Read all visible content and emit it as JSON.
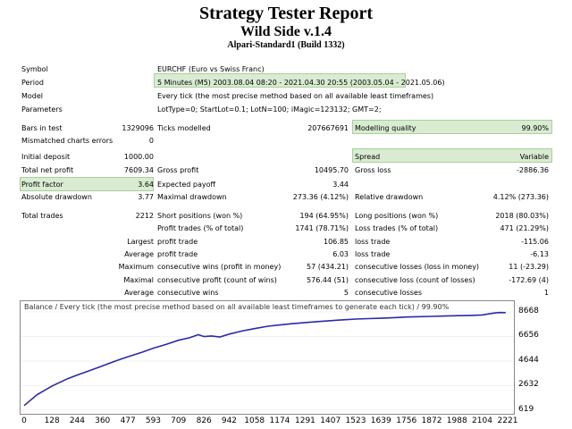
{
  "header": {
    "title": "Strategy Tester Report",
    "subtitle": "Wild Side v.1.4",
    "server": "Alpari-Standard1 (Build 1332)"
  },
  "info": {
    "symbol_label": "Symbol",
    "symbol_value": "EURCHF (Euro vs Swiss Franc)",
    "period_label": "Period",
    "period_value": "5 Minutes (M5) 2003.08.04 08:20 - 2021.04.30 20:55 (2003.05.04 - 2021.05.06)",
    "model_label": "Model",
    "model_value": "Every tick (the most precise method based on all available least timeframes)",
    "parameters_label": "Parameters",
    "parameters_value": "LotType=0; StartLot=0.1; LotN=100; iMagic=123132; GMT=2;"
  },
  "stats": {
    "bars_label": "Bars in test",
    "bars_value": "1329096",
    "ticks_label": "Ticks modelled",
    "ticks_value": "207667691",
    "quality_label": "Modelling quality",
    "quality_value": "99.90%",
    "mismatch_label": "Mismatched charts errors",
    "mismatch_value": "0",
    "deposit_label": "Initial deposit",
    "deposit_value": "1000.00",
    "spread_label": "Spread",
    "spread_value": "Variable",
    "net_label": "Total net profit",
    "net_value": "7609.34",
    "gross_profit_label": "Gross profit",
    "gross_profit_value": "10495.70",
    "gross_loss_label": "Gross loss",
    "gross_loss_value": "-2886.36",
    "pf_label": "Profit factor",
    "pf_value": "3.64",
    "payoff_label": "Expected payoff",
    "payoff_value": "3.44",
    "abs_dd_label": "Absolute drawdown",
    "abs_dd_value": "3.77",
    "max_dd_label": "Maximal drawdown",
    "max_dd_value": "273.36 (4.12%)",
    "rel_dd_label": "Relative drawdown",
    "rel_dd_value": "4.12% (273.36)",
    "trades_label": "Total trades",
    "trades_value": "2212",
    "short_label": "Short positions (won %)",
    "short_value": "194 (64.95%)",
    "long_label": "Long positions (won %)",
    "long_value": "2018 (80.03%)",
    "pt_label": "Profit trades (% of total)",
    "pt_value": "1741 (78.71%)",
    "lt_label": "Loss trades (% of total)",
    "lt_value": "471 (21.29%)",
    "largest": "Largest",
    "lpt_label": "profit trade",
    "lpt_value": "106.85",
    "llt_label": "loss trade",
    "llt_value": "-115.06",
    "average": "Average",
    "apt_label": "profit trade",
    "apt_value": "6.03",
    "alt_label": "loss trade",
    "alt_value": "-6.13",
    "maximum": "Maximum",
    "mcw_label": "consecutive wins (profit in money)",
    "mcw_value": "57 (434.21)",
    "mcl_label": "consecutive losses (loss in money)",
    "mcl_value": "11 (-23.29)",
    "maximal": "Maximal",
    "mcp_label": "consecutive profit (count of wins)",
    "mcp_value": "576.44 (51)",
    "mclo_label": "consecutive loss (count of losses)",
    "mclo_value": "-172.69 (4)",
    "average2": "Average",
    "acw_label": "consecutive wins",
    "acw_value": "5",
    "acl_label": "consecutive losses",
    "acl_value": "1"
  },
  "chart_data": {
    "type": "line",
    "title": "Balance / Every tick (the most precise method based on all available least timeframes to generate each tick) / 99.90%",
    "line_color": "#2a2aa8",
    "ylim": [
      619,
      8668
    ],
    "y_ticks": [
      "8668",
      "6656",
      "4644",
      "2632",
      "619"
    ],
    "x_ticks": [
      "0",
      "128",
      "244",
      "360",
      "477",
      "593",
      "709",
      "826",
      "942",
      "1058",
      "1174",
      "1291",
      "1407",
      "1523",
      "1639",
      "1756",
      "1872",
      "1988",
      "2104",
      "2221"
    ],
    "series": [
      {
        "x": [
          0,
          60,
          128,
          200,
          244,
          300,
          360,
          420,
          477,
          540,
          593,
          650,
          709,
          760,
          800,
          826,
          860,
          900,
          942,
          1000,
          1058,
          1120,
          1174,
          1230,
          1291,
          1350,
          1407,
          1460,
          1523,
          1580,
          1639,
          1700,
          1756,
          1800,
          1872,
          1930,
          1988,
          2050,
          2104,
          2150,
          2180,
          2212
        ],
        "y": [
          1000,
          1900,
          2600,
          3200,
          3500,
          3850,
          4250,
          4650,
          5000,
          5350,
          5700,
          6000,
          6350,
          6550,
          6800,
          6650,
          6700,
          6620,
          6850,
          7100,
          7300,
          7500,
          7600,
          7700,
          7800,
          7880,
          7950,
          8020,
          8080,
          8120,
          8150,
          8200,
          8250,
          8270,
          8300,
          8330,
          8360,
          8380,
          8420,
          8550,
          8620,
          8610
        ]
      }
    ]
  }
}
